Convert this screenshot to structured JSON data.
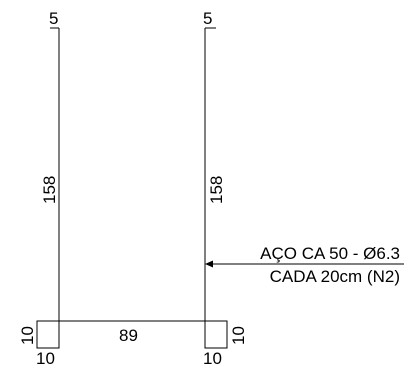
{
  "colors": {
    "stroke": "#000000",
    "background": "#ffffff"
  },
  "dimensions": {
    "left_top_hook": "5",
    "right_top_hook": "5",
    "left_vertical": "158",
    "right_vertical": "158",
    "bottom_horizontal": "89",
    "left_foot_height": "10",
    "left_foot_width": "10",
    "right_foot_height": "10",
    "right_foot_width": "10"
  },
  "annotation": {
    "line1": "AÇO CA 50 - Ø6.3",
    "line2": "CADA 20cm (N2)"
  }
}
